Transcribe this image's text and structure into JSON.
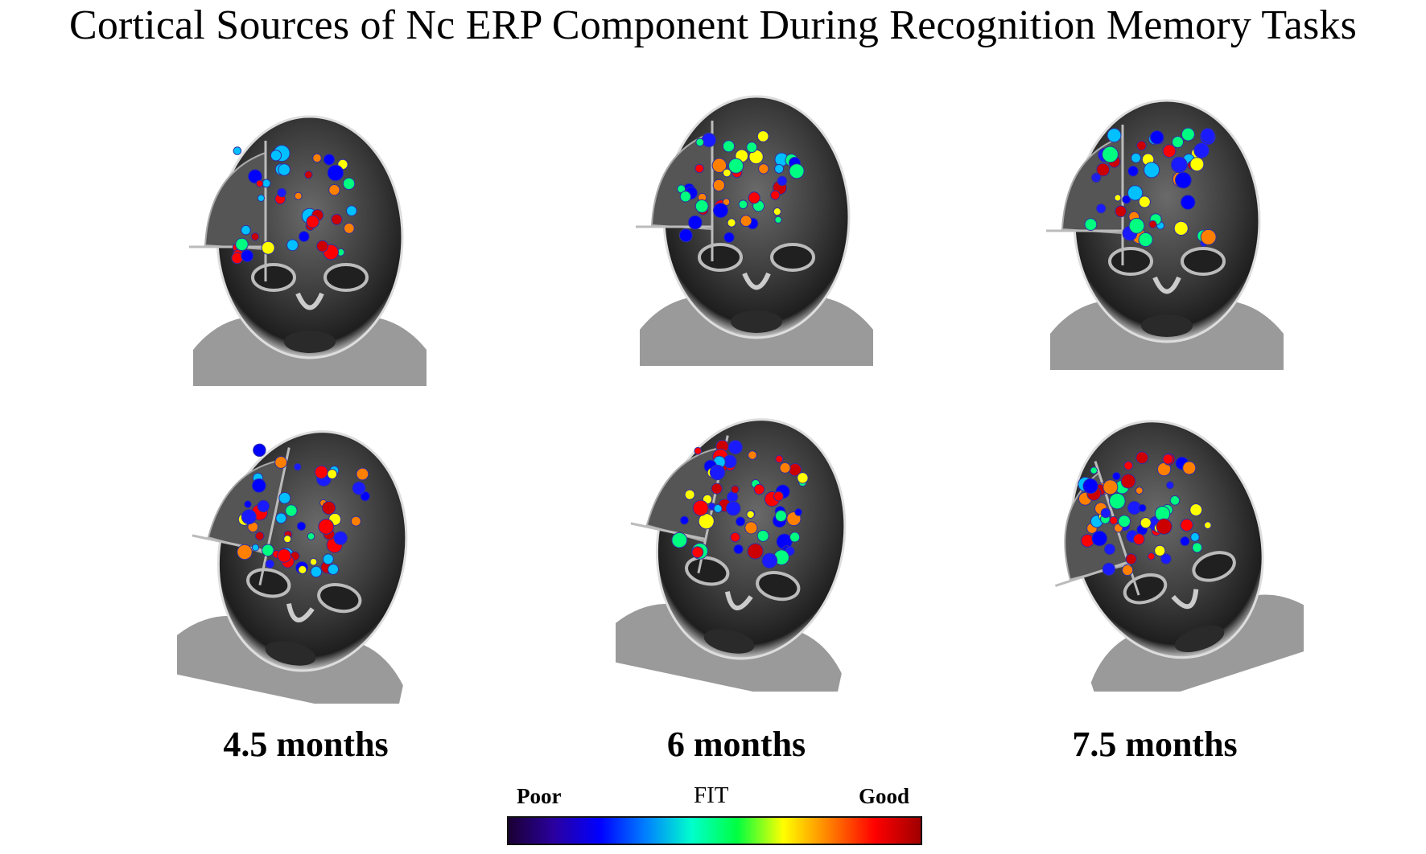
{
  "title": "Cortical Sources of Nc ERP Component During Recognition Memory Tasks",
  "columns": [
    {
      "label": "4.5 months"
    },
    {
      "label": "6 months"
    },
    {
      "label": "7.5 months"
    }
  ],
  "legend": {
    "poor_label": "Poor",
    "fit_label": "FIT",
    "good_label": "Good",
    "gradient_colors": [
      "#1a0033",
      "#2a00a0",
      "#0000ff",
      "#0080ff",
      "#00ffcc",
      "#00ff40",
      "#ffff00",
      "#ff8000",
      "#ff0000",
      "#a00000"
    ]
  },
  "panels": [
    {
      "age": "4.5 months",
      "view": "front"
    },
    {
      "age": "6 months",
      "view": "front"
    },
    {
      "age": "7.5 months",
      "view": "front"
    },
    {
      "age": "4.5 months",
      "view": "oblique"
    },
    {
      "age": "6 months",
      "view": "oblique"
    },
    {
      "age": "7.5 months",
      "view": "oblique"
    }
  ]
}
